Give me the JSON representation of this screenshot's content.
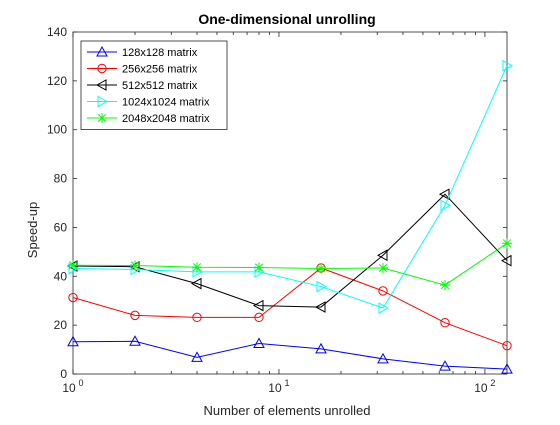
{
  "chart_data": {
    "type": "line",
    "title": "One-dimensional unrolling",
    "xlabel": "Number of elements unrolled",
    "ylabel": "Speed-up",
    "xscale": "log",
    "xlim": [
      1,
      128
    ],
    "ylim": [
      0,
      140
    ],
    "x_ticks": [
      {
        "value": 1,
        "base": "10",
        "exp": "0"
      },
      {
        "value": 10,
        "base": "10",
        "exp": "1"
      },
      {
        "value": 100,
        "base": "10",
        "exp": "2"
      }
    ],
    "y_ticks": [
      0,
      20,
      40,
      60,
      80,
      100,
      120,
      140
    ],
    "grid": false,
    "legend_position": "top-left",
    "x": [
      1,
      2,
      4,
      8,
      16,
      32,
      64,
      128
    ],
    "series": [
      {
        "name": "128x128 matrix",
        "color": "#0000ff",
        "marker": "triangle-up",
        "values": [
          13.2,
          13.4,
          6.8,
          12.5,
          10.3,
          6.2,
          3.2,
          2.0
        ]
      },
      {
        "name": "256x256 matrix",
        "color": "#ff0000",
        "marker": "circle",
        "values": [
          31.3,
          24.0,
          23.2,
          23.2,
          43.4,
          34.0,
          21.0,
          11.6
        ]
      },
      {
        "name": "512x512 matrix",
        "color": "#000000",
        "marker": "triangle-left",
        "values": [
          44.2,
          43.9,
          37.0,
          28.0,
          27.4,
          48.6,
          73.6,
          46.4
        ]
      },
      {
        "name": "1024x1024 matrix",
        "color": "#00ffff",
        "marker": "triangle-right",
        "values": [
          43.2,
          42.8,
          41.8,
          41.8,
          35.8,
          27.0,
          69.0,
          126.2
        ]
      },
      {
        "name": "2048x2048 matrix",
        "color": "#00ff00",
        "marker": "asterisk",
        "values": [
          44.5,
          44.4,
          43.7,
          43.6,
          43.2,
          43.4,
          36.4,
          53.5
        ]
      }
    ]
  }
}
